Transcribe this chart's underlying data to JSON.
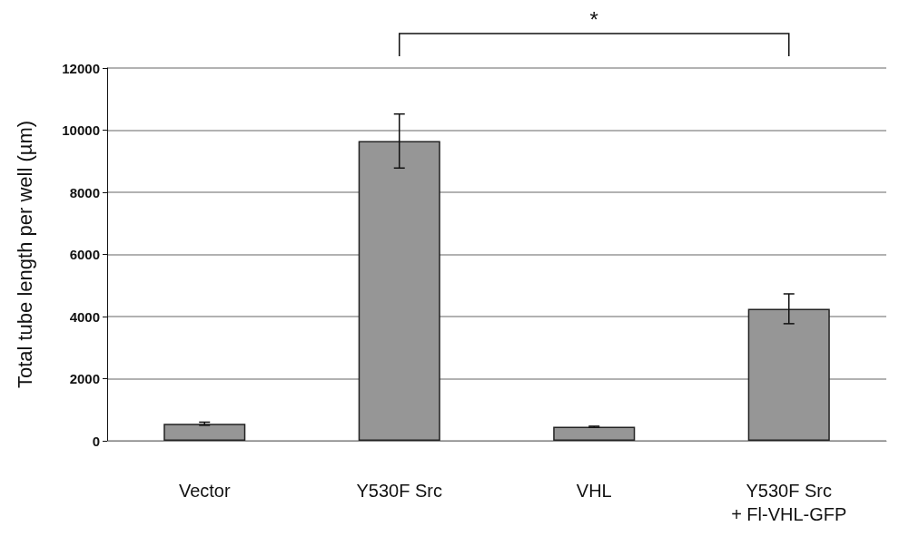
{
  "chart_data": {
    "type": "bar",
    "ylabel": "Total tube length per well (µm)",
    "categories": [
      "Vector",
      "Y530F Src",
      "VHL",
      "Y530F Src\n+ Fl-VHL-GFP"
    ],
    "values": [
      550,
      9650,
      450,
      4250
    ],
    "errors": [
      50,
      870,
      20,
      480
    ],
    "color": "#969696",
    "ylim": [
      0,
      12000
    ],
    "yticks": [
      0,
      2000,
      4000,
      6000,
      8000,
      10000,
      12000
    ],
    "grid": "y",
    "annotations": [
      "*"
    ]
  }
}
